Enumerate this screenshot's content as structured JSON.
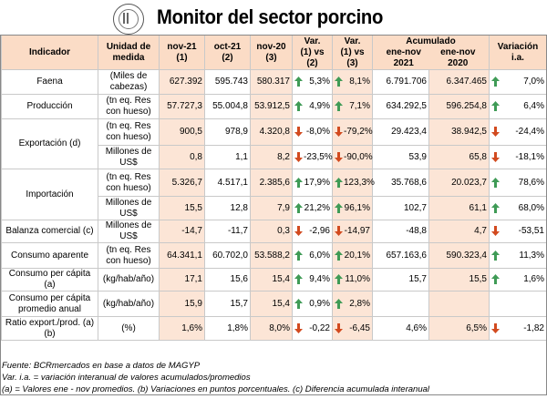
{
  "title": "Monitor del sector porcino",
  "headers": {
    "indicador": "Indicador",
    "unidad": "Unidad de medida",
    "nov21": "nov-21",
    "nov21_n": "(1)",
    "oct21": "oct-21",
    "oct21_n": "(2)",
    "nov20": "nov-20",
    "nov20_n": "(3)",
    "var12": "Var.",
    "var12_n": "(1) vs (2)",
    "var13": "Var.",
    "var13_n": "(1) vs (3)",
    "acum": "Acumulado",
    "acum21": "ene-nov 2021",
    "acum20": "ene-nov 2020",
    "variacion": "Variación",
    "variacion_n": "i.a."
  },
  "rows": [
    {
      "ind": "Faena",
      "unit": "(Miles de cabezas)",
      "a": "627.392",
      "b": "595.743",
      "c": "580.317",
      "v1": "5,3%",
      "v1d": "up",
      "v2": "8,1%",
      "v2d": "up",
      "d": "6.791.706",
      "e": "6.347.465",
      "f": "7,0%",
      "fd": "up"
    },
    {
      "ind": "Producción",
      "unit": "(tn eq. Res con hueso)",
      "a": "57.727,3",
      "b": "55.004,8",
      "c": "53.912,5",
      "v1": "4,9%",
      "v1d": "up",
      "v2": "7,1%",
      "v2d": "up",
      "d": "634.292,5",
      "e": "596.254,8",
      "f": "6,4%",
      "fd": "up"
    },
    {
      "ind": "Exportación (d)",
      "unit": "(tn eq. Res con hueso)",
      "a": "900,5",
      "b": "978,9",
      "c": "4.320,8",
      "v1": "-8,0%",
      "v1d": "down",
      "v2": "-79,2%",
      "v2d": "down",
      "d": "29.423,4",
      "e": "38.942,5",
      "f": "-24,4%",
      "fd": "down"
    },
    {
      "ind": "",
      "unit": "Millones de US$",
      "a": "0,8",
      "b": "1,1",
      "c": "8,2",
      "v1": "-23,5%",
      "v1d": "down",
      "v2": "-90,0%",
      "v2d": "down",
      "d": "53,9",
      "e": "65,8",
      "f": "-18,1%",
      "fd": "down"
    },
    {
      "ind": "Importación",
      "unit": "(tn eq. Res con hueso)",
      "a": "5.326,7",
      "b": "4.517,1",
      "c": "2.385,6",
      "v1": "17,9%",
      "v1d": "up",
      "v2": "123,3%",
      "v2d": "up",
      "d": "35.768,6",
      "e": "20.023,7",
      "f": "78,6%",
      "fd": "up"
    },
    {
      "ind": "",
      "unit": "Millones de US$",
      "a": "15,5",
      "b": "12,8",
      "c": "7,9",
      "v1": "21,2%",
      "v1d": "up",
      "v2": "96,1%",
      "v2d": "up",
      "d": "102,7",
      "e": "61,1",
      "f": "68,0%",
      "fd": "up"
    },
    {
      "ind": "Balanza comercial (c)",
      "unit": "Millones de US$",
      "a": "-14,7",
      "b": "-11,7",
      "c": "0,3",
      "v1": "-2,96",
      "v1d": "down",
      "v2": "-14,97",
      "v2d": "down",
      "d": "-48,8",
      "e": "4,7",
      "f": "-53,51",
      "fd": "down"
    },
    {
      "ind": "Consumo aparente",
      "unit": "(tn eq. Res con hueso)",
      "a": "64.341,1",
      "b": "60.702,0",
      "c": "53.588,2",
      "v1": "6,0%",
      "v1d": "up",
      "v2": "20,1%",
      "v2d": "up",
      "d": "657.163,6",
      "e": "590.323,4",
      "f": "11,3%",
      "fd": "up"
    },
    {
      "ind": "Consumo per cápita (a)",
      "unit": "(kg/hab/año)",
      "a": "17,1",
      "b": "15,6",
      "c": "15,4",
      "v1": "9,4%",
      "v1d": "up",
      "v2": "11,0%",
      "v2d": "up",
      "d": "15,7",
      "e": "15,5",
      "f": "1,6%",
      "fd": "up"
    },
    {
      "ind": "Consumo per cápita promedio anual",
      "unit": "(kg/hab/año)",
      "a": "15,9",
      "b": "15,7",
      "c": "15,4",
      "v1": "0,9%",
      "v1d": "up",
      "v2": "2,8%",
      "v2d": "up",
      "d": "",
      "e": "",
      "f": "",
      "fd": ""
    },
    {
      "ind": "Ratio export./prod. (a)(b)",
      "unit": "(%)",
      "a": "1,6%",
      "b": "1,8%",
      "c": "8,0%",
      "v1": "-0,22",
      "v1d": "down",
      "v2": "-6,45",
      "v2d": "down",
      "d": "4,6%",
      "e": "6,5%",
      "f": "-1,82",
      "fd": "down"
    }
  ],
  "footer": {
    "line1": "Fuente: BCRmercados en base a datos de MAGYP",
    "line2": "Var. i.a. = variación interanual de valores acumulados/promedios",
    "line3": "(a) = Valores ene - nov promedios. (b) Variaciones en puntos porcentuales. (c) Diferencia acumulada interanual"
  },
  "colors": {
    "up": "#3f9b56",
    "down": "#d24a1f",
    "header_bg": "#fbdcc6",
    "shade_bg": "#fce5d6"
  },
  "icons": {
    "up": "arrow-up-icon",
    "down": "arrow-down-icon"
  }
}
